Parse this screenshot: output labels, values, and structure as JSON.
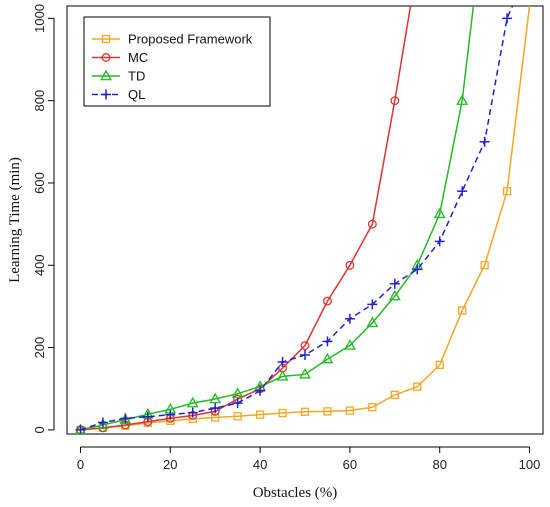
{
  "chart_data": {
    "type": "line",
    "xlabel": "Obstacles (%)",
    "ylabel": "Learning Time (min)",
    "xlim": [
      -3,
      103
    ],
    "ylim": [
      -10,
      1030
    ],
    "xticks": [
      0,
      20,
      40,
      60,
      80,
      100
    ],
    "yticks": [
      0,
      200,
      400,
      600,
      800,
      1000
    ],
    "grid": false,
    "legend_position": "top-left",
    "series": [
      {
        "name": "Proposed Framework",
        "color": "#f5a623",
        "marker": "square",
        "dash": "solid",
        "x": [
          0,
          5,
          10,
          15,
          20,
          25,
          30,
          35,
          40,
          45,
          50,
          55,
          60,
          65,
          70,
          75,
          80,
          85,
          90,
          95,
          100
        ],
        "y": [
          0,
          5,
          10,
          17,
          22,
          27,
          30,
          33,
          37,
          41,
          44,
          45,
          47,
          55,
          85,
          105,
          158,
          290,
          400,
          580,
          1030
        ]
      },
      {
        "name": "MC",
        "color": "#dd3333",
        "marker": "circle",
        "dash": "solid",
        "x": [
          0,
          5,
          10,
          15,
          20,
          25,
          30,
          35,
          40,
          45,
          50,
          55,
          60,
          65,
          70,
          73.5
        ],
        "y": [
          0,
          5,
          12,
          20,
          28,
          35,
          45,
          75,
          100,
          150,
          205,
          313,
          400,
          500,
          800,
          1030
        ]
      },
      {
        "name": "TD",
        "color": "#22bb22",
        "marker": "triangle",
        "dash": "solid",
        "x": [
          0,
          5,
          10,
          15,
          20,
          25,
          30,
          35,
          40,
          45,
          50,
          55,
          60,
          65,
          70,
          75,
          80,
          85,
          87.5
        ],
        "y": [
          0,
          12,
          25,
          38,
          50,
          65,
          75,
          88,
          105,
          130,
          135,
          172,
          205,
          260,
          325,
          400,
          525,
          800,
          1030
        ]
      },
      {
        "name": "QL",
        "color": "#2222cc",
        "marker": "plus",
        "dash": "dashed",
        "x": [
          0,
          5,
          10,
          15,
          20,
          25,
          30,
          35,
          40,
          45,
          50,
          55,
          60,
          65,
          70,
          75,
          80,
          85,
          90,
          95,
          96.2
        ],
        "y": [
          0,
          18,
          28,
          32,
          37,
          42,
          53,
          65,
          95,
          165,
          182,
          215,
          270,
          305,
          355,
          390,
          458,
          580,
          700,
          1000,
          1030
        ]
      }
    ]
  }
}
